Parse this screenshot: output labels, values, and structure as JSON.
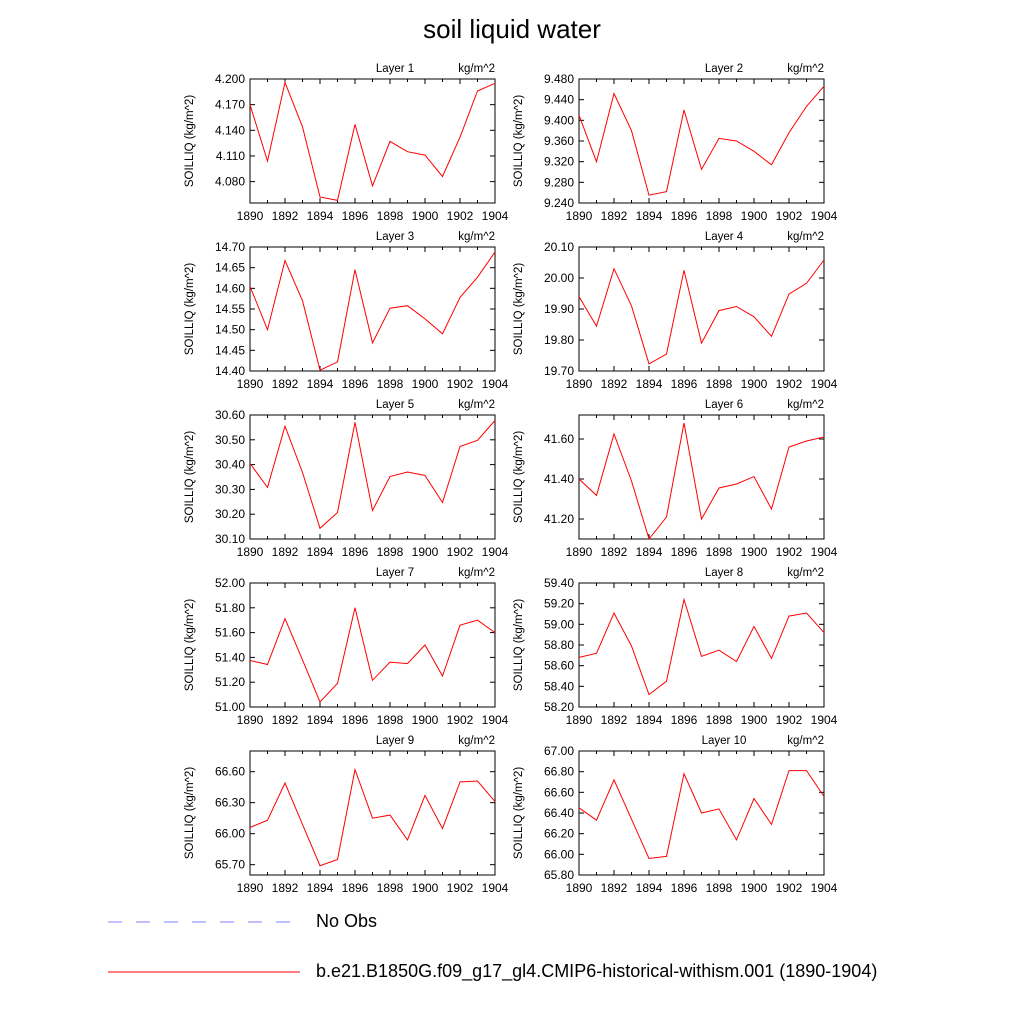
{
  "title": "soil liquid water",
  "colors": {
    "model_line": "#ff0000",
    "obs_line": "#9999ff",
    "axis": "#000000"
  },
  "legend": [
    {
      "label": "No Obs",
      "style": "dashed",
      "color": "#9999ff"
    },
    {
      "label": "b.e21.B1850G.f09_g17_gl4.CMIP6-historical-withism.001 (1890-1904)",
      "style": "solid",
      "color": "#ff0000"
    }
  ],
  "chart_data": [
    {
      "type": "line",
      "title": "Layer 1",
      "units": "kg/m^2",
      "ylabel": "SOILLIQ  (kg/m^2)",
      "x": [
        1890,
        1891,
        1892,
        1893,
        1894,
        1895,
        1896,
        1897,
        1898,
        1899,
        1900,
        1901,
        1902,
        1903,
        1904
      ],
      "xticks": [
        "1890",
        "1892",
        "1894",
        "1896",
        "1898",
        "1900",
        "1902",
        "1904"
      ],
      "ylim": [
        4.055,
        4.2
      ],
      "yticks": [
        "4.080",
        "4.110",
        "4.140",
        "4.170",
        "4.200"
      ],
      "series": [
        {
          "values": [
            4.17,
            4.104,
            4.196,
            4.144,
            4.062,
            4.058,
            4.147,
            4.075,
            4.127,
            4.115,
            4.111,
            4.086,
            4.132,
            4.186,
            4.195
          ]
        }
      ]
    },
    {
      "type": "line",
      "title": "Layer 2",
      "units": "kg/m^2",
      "ylabel": "SOILLIQ  (kg/m^2)",
      "x": [
        1890,
        1891,
        1892,
        1893,
        1894,
        1895,
        1896,
        1897,
        1898,
        1899,
        1900,
        1901,
        1902,
        1903,
        1904
      ],
      "xticks": [
        "1890",
        "1892",
        "1894",
        "1896",
        "1898",
        "1900",
        "1902",
        "1904"
      ],
      "ylim": [
        9.24,
        9.48
      ],
      "yticks": [
        "9.240",
        "9.280",
        "9.320",
        "9.360",
        "9.400",
        "9.440",
        "9.480"
      ],
      "series": [
        {
          "values": [
            9.41,
            9.32,
            9.452,
            9.38,
            9.255,
            9.262,
            9.42,
            9.305,
            9.365,
            9.36,
            9.34,
            9.314,
            9.376,
            9.427,
            9.466
          ]
        }
      ]
    },
    {
      "type": "line",
      "title": "Layer 3",
      "units": "kg/m^2",
      "ylabel": "SOILLIQ  (kg/m^2)",
      "x": [
        1890,
        1891,
        1892,
        1893,
        1894,
        1895,
        1896,
        1897,
        1898,
        1899,
        1900,
        1901,
        1902,
        1903,
        1904
      ],
      "xticks": [
        "1890",
        "1892",
        "1894",
        "1896",
        "1898",
        "1900",
        "1902",
        "1904"
      ],
      "ylim": [
        14.4,
        14.7
      ],
      "yticks": [
        "14.40",
        "14.45",
        "14.50",
        "14.55",
        "14.60",
        "14.65",
        "14.70"
      ],
      "series": [
        {
          "values": [
            14.605,
            14.5,
            14.667,
            14.57,
            14.402,
            14.422,
            14.645,
            14.468,
            14.552,
            14.558,
            14.526,
            14.49,
            14.578,
            14.627,
            14.688
          ]
        }
      ]
    },
    {
      "type": "line",
      "title": "Layer 4",
      "units": "kg/m^2",
      "ylabel": "SOILLIQ  (kg/m^2)",
      "x": [
        1890,
        1891,
        1892,
        1893,
        1894,
        1895,
        1896,
        1897,
        1898,
        1899,
        1900,
        1901,
        1902,
        1903,
        1904
      ],
      "xticks": [
        "1890",
        "1892",
        "1894",
        "1896",
        "1898",
        "1900",
        "1902",
        "1904"
      ],
      "ylim": [
        19.7,
        20.1
      ],
      "yticks": [
        "19.70",
        "19.80",
        "19.90",
        "20.00",
        "20.10"
      ],
      "series": [
        {
          "values": [
            19.94,
            19.845,
            20.03,
            19.91,
            19.723,
            19.755,
            20.025,
            19.79,
            19.895,
            19.908,
            19.875,
            19.812,
            19.948,
            19.983,
            20.058
          ]
        }
      ]
    },
    {
      "type": "line",
      "title": "Layer 5",
      "units": "kg/m^2",
      "ylabel": "SOILLIQ  (kg/m^2)",
      "x": [
        1890,
        1891,
        1892,
        1893,
        1894,
        1895,
        1896,
        1897,
        1898,
        1899,
        1900,
        1901,
        1902,
        1903,
        1904
      ],
      "xticks": [
        "1890",
        "1892",
        "1894",
        "1896",
        "1898",
        "1900",
        "1902",
        "1904"
      ],
      "ylim": [
        30.1,
        30.6
      ],
      "yticks": [
        "30.10",
        "30.20",
        "30.30",
        "30.40",
        "30.50",
        "30.60"
      ],
      "series": [
        {
          "values": [
            30.405,
            30.308,
            30.555,
            30.368,
            30.143,
            30.207,
            30.57,
            30.215,
            30.352,
            30.37,
            30.356,
            30.247,
            30.473,
            30.498,
            30.578
          ]
        }
      ]
    },
    {
      "type": "line",
      "title": "Layer 6",
      "units": "kg/m^2",
      "ylabel": "SOILLIQ  (kg/m^2)",
      "x": [
        1890,
        1891,
        1892,
        1893,
        1894,
        1895,
        1896,
        1897,
        1898,
        1899,
        1900,
        1901,
        1902,
        1903,
        1904
      ],
      "xticks": [
        "1890",
        "1892",
        "1894",
        "1896",
        "1898",
        "1900",
        "1902",
        "1904"
      ],
      "ylim": [
        41.1,
        41.72
      ],
      "yticks": [
        "41.20",
        "41.40",
        "41.60"
      ],
      "series": [
        {
          "values": [
            41.4,
            41.318,
            41.625,
            41.39,
            41.1,
            41.21,
            41.68,
            41.2,
            41.355,
            41.375,
            41.412,
            41.25,
            41.56,
            41.59,
            41.61
          ]
        }
      ]
    },
    {
      "type": "line",
      "title": "Layer 7",
      "units": "kg/m^2",
      "ylabel": "SOILLIQ  (kg/m^2)",
      "x": [
        1890,
        1891,
        1892,
        1893,
        1894,
        1895,
        1896,
        1897,
        1898,
        1899,
        1900,
        1901,
        1902,
        1903,
        1904
      ],
      "xticks": [
        "1890",
        "1892",
        "1894",
        "1896",
        "1898",
        "1900",
        "1902",
        "1904"
      ],
      "ylim": [
        51.0,
        52.0
      ],
      "yticks": [
        "51.00",
        "51.20",
        "51.40",
        "51.60",
        "51.80",
        "52.00"
      ],
      "series": [
        {
          "values": [
            51.375,
            51.343,
            51.712,
            51.38,
            51.04,
            51.19,
            51.8,
            51.215,
            51.362,
            51.35,
            51.5,
            51.25,
            51.66,
            51.7,
            51.6
          ]
        }
      ]
    },
    {
      "type": "line",
      "title": "Layer 8",
      "units": "kg/m^2",
      "ylabel": "SOILLIQ  (kg/m^2)",
      "x": [
        1890,
        1891,
        1892,
        1893,
        1894,
        1895,
        1896,
        1897,
        1898,
        1899,
        1900,
        1901,
        1902,
        1903,
        1904
      ],
      "xticks": [
        "1890",
        "1892",
        "1894",
        "1896",
        "1898",
        "1900",
        "1902",
        "1904"
      ],
      "ylim": [
        58.2,
        59.4
      ],
      "yticks": [
        "58.20",
        "58.40",
        "58.60",
        "58.80",
        "59.00",
        "59.20",
        "59.40"
      ],
      "series": [
        {
          "values": [
            58.68,
            58.72,
            59.11,
            58.79,
            58.32,
            58.45,
            59.24,
            58.69,
            58.75,
            58.64,
            58.98,
            58.67,
            59.08,
            59.11,
            58.92
          ]
        }
      ]
    },
    {
      "type": "line",
      "title": "Layer 9",
      "units": "kg/m^2",
      "ylabel": "SOILLIQ  (kg/m^2)",
      "x": [
        1890,
        1891,
        1892,
        1893,
        1894,
        1895,
        1896,
        1897,
        1898,
        1899,
        1900,
        1901,
        1902,
        1903,
        1904
      ],
      "xticks": [
        "1890",
        "1892",
        "1894",
        "1896",
        "1898",
        "1900",
        "1902",
        "1904"
      ],
      "ylim": [
        65.6,
        66.8
      ],
      "yticks": [
        "65.70",
        "66.00",
        "66.30",
        "66.60"
      ],
      "series": [
        {
          "values": [
            66.06,
            66.13,
            66.49,
            66.09,
            65.69,
            65.75,
            66.62,
            66.15,
            66.18,
            65.94,
            66.37,
            66.05,
            66.5,
            66.51,
            66.31
          ]
        }
      ]
    },
    {
      "type": "line",
      "title": "Layer 10",
      "units": "kg/m^2",
      "ylabel": "SOILLIQ  (kg/m^2)",
      "x": [
        1890,
        1891,
        1892,
        1893,
        1894,
        1895,
        1896,
        1897,
        1898,
        1899,
        1900,
        1901,
        1902,
        1903,
        1904
      ],
      "xticks": [
        "1890",
        "1892",
        "1894",
        "1896",
        "1898",
        "1900",
        "1902",
        "1904"
      ],
      "ylim": [
        65.8,
        67.0
      ],
      "yticks": [
        "65.80",
        "66.00",
        "66.20",
        "66.40",
        "66.60",
        "66.80",
        "67.00"
      ],
      "series": [
        {
          "values": [
            66.45,
            66.33,
            66.72,
            66.34,
            65.96,
            65.98,
            66.78,
            66.4,
            66.44,
            66.14,
            66.54,
            66.29,
            66.81,
            66.81,
            66.56
          ]
        }
      ]
    }
  ]
}
